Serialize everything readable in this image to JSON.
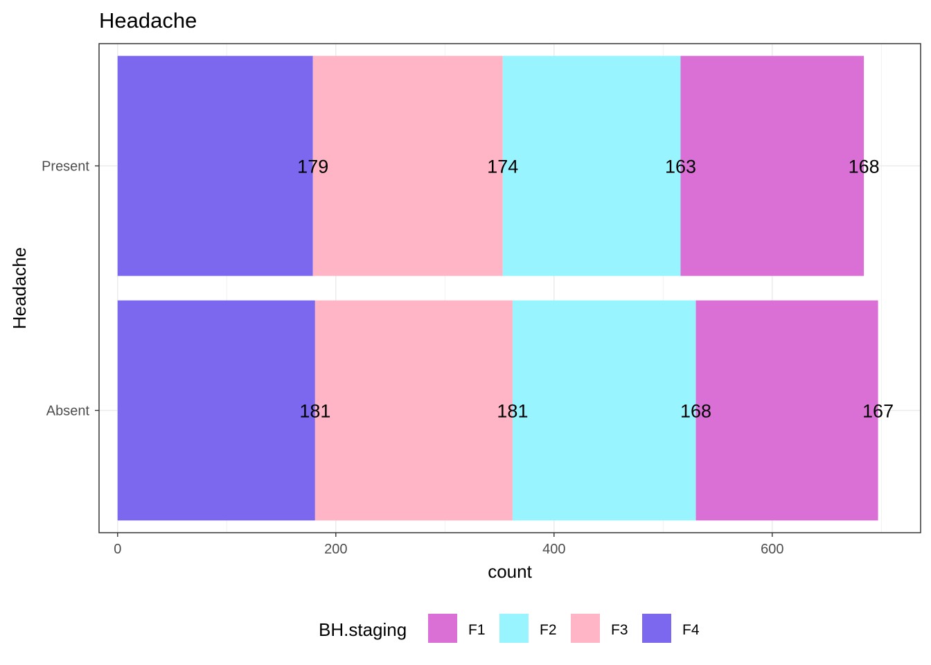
{
  "chart_data": {
    "type": "bar",
    "orientation": "horizontal",
    "stacked": true,
    "title": "Headache",
    "xlabel": "count",
    "ylabel": "Headache",
    "categories": [
      "Absent",
      "Present"
    ],
    "xlim": [
      -17,
      736
    ],
    "x_ticks": [
      0,
      200,
      400,
      600
    ],
    "grid": true,
    "legend_position": "bottom",
    "legend_title": "BH.staging",
    "stack_order": [
      "F4",
      "F3",
      "F2",
      "F1"
    ],
    "series": [
      {
        "name": "F1",
        "color": "#DA70D6",
        "values": [
          167,
          168
        ]
      },
      {
        "name": "F2",
        "color": "#98F5FF",
        "values": [
          168,
          163
        ]
      },
      {
        "name": "F3",
        "color": "#FFB5C5",
        "values": [
          181,
          174
        ]
      },
      {
        "name": "F4",
        "color": "#7B68EE",
        "values": [
          181,
          179
        ]
      }
    ]
  }
}
